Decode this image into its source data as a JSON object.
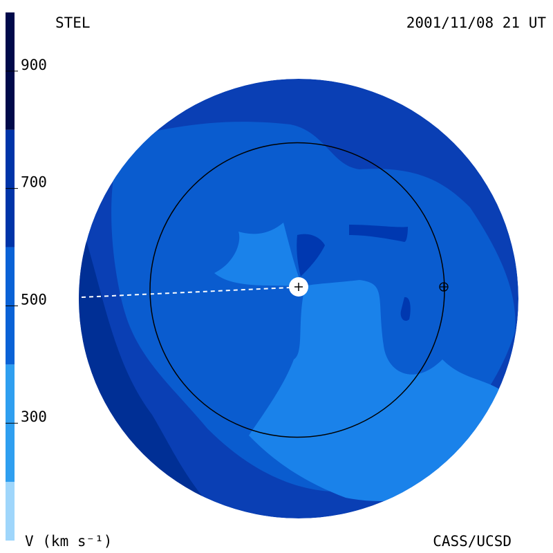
{
  "chart_data": {
    "type": "map",
    "observatory": "STEL",
    "timestamp": "2001/11/08 21 UT",
    "colorbar_label": "V (km s⁻¹)",
    "credit": "CASS/UCSD",
    "colorbar": {
      "zlim": [
        100,
        1000
      ],
      "levels": [
        100,
        200,
        400,
        600,
        800,
        1000
      ],
      "colors": [
        "#9fd6fb",
        "#2f9ff0",
        "#0a62d6",
        "#0034a8",
        "#000a4a"
      ],
      "ticks": [
        300,
        500,
        700,
        900
      ]
    }
  }
}
